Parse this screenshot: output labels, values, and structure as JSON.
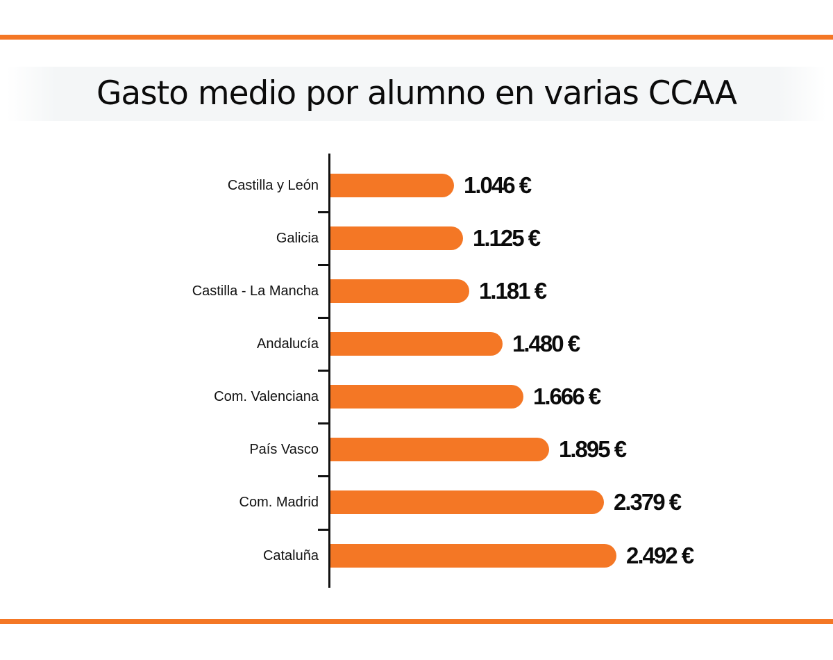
{
  "title": "Gasto medio por alumno en varias CCAA",
  "colors": {
    "bar": "#f47725",
    "rule": "#f47725",
    "text": "#0b0b0b",
    "axis": "#111111"
  },
  "rows": [
    {
      "label": "Castilla y León",
      "value_label": "1.046 €"
    },
    {
      "label": "Galicia",
      "value_label": "1.125 €"
    },
    {
      "label": "Castilla - La Mancha",
      "value_label": "1.181 €"
    },
    {
      "label": "Andalucía",
      "value_label": "1.480 €"
    },
    {
      "label": "Com. Valenciana",
      "value_label": "1.666 €"
    },
    {
      "label": "País Vasco",
      "value_label": "1.895 €"
    },
    {
      "label": "Com. Madrid",
      "value_label": "2.379 €"
    },
    {
      "label": "Cataluña",
      "value_label": "2.492 €"
    }
  ],
  "chart_data": {
    "type": "bar",
    "orientation": "horizontal",
    "title": "Gasto medio por alumno en varias CCAA",
    "categories": [
      "Castilla y León",
      "Galicia",
      "Castilla - La Mancha",
      "Andalucía",
      "Com. Valenciana",
      "País Vasco",
      "Com. Madrid",
      "Cataluña"
    ],
    "values": [
      1046,
      1125,
      1181,
      1480,
      1666,
      1895,
      2379,
      2492
    ],
    "unit": "€",
    "xlabel": "",
    "ylabel": "",
    "grid": false,
    "legend": null,
    "data_labels": true
  }
}
